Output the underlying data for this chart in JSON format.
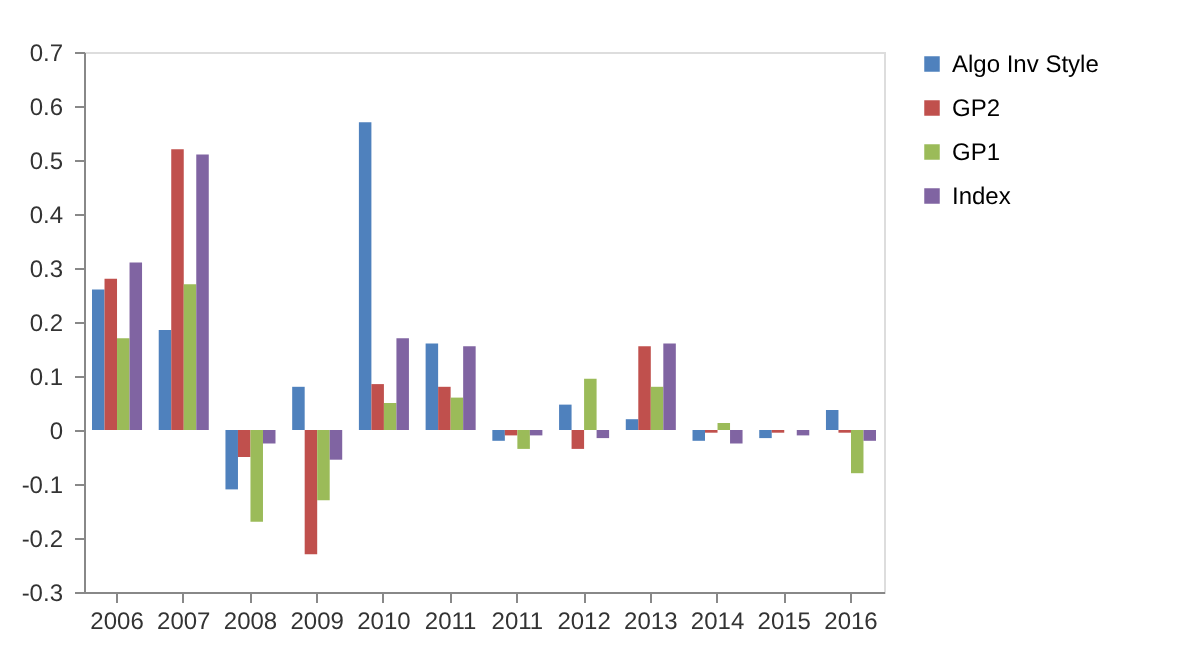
{
  "chart_data": {
    "type": "bar",
    "categories": [
      "2006",
      "2007",
      "2008",
      "2009",
      "2010",
      "2011",
      "2011",
      "2012",
      "2013",
      "2014",
      "2015",
      "2016"
    ],
    "series": [
      {
        "name": "Algo Inv Style",
        "color": "#4f81bd",
        "values": [
          0.26,
          0.185,
          -0.11,
          0.08,
          0.57,
          0.16,
          -0.02,
          0.047,
          0.02,
          -0.02,
          -0.015,
          0.037
        ]
      },
      {
        "name": "GP2",
        "color": "#c0504d",
        "values": [
          0.28,
          0.52,
          -0.05,
          -0.23,
          0.085,
          0.08,
          -0.01,
          -0.035,
          0.155,
          -0.005,
          -0.005,
          -0.005
        ]
      },
      {
        "name": "GP1",
        "color": "#9bbb59",
        "values": [
          0.17,
          0.27,
          -0.17,
          -0.13,
          0.05,
          0.06,
          -0.035,
          0.095,
          0.08,
          0.013,
          0,
          -0.08
        ]
      },
      {
        "name": "Index",
        "color": "#8064a2",
        "values": [
          0.31,
          0.51,
          -0.025,
          -0.055,
          0.17,
          0.155,
          -0.01,
          -0.015,
          0.16,
          -0.025,
          -0.01,
          -0.02
        ]
      }
    ],
    "ylim": [
      -0.3,
      0.7
    ],
    "yticks": [
      -0.3,
      -0.2,
      -0.1,
      0,
      0.1,
      0.2,
      0.3,
      0.4,
      0.5,
      0.6,
      0.7
    ],
    "grid": false,
    "legend": "right"
  }
}
